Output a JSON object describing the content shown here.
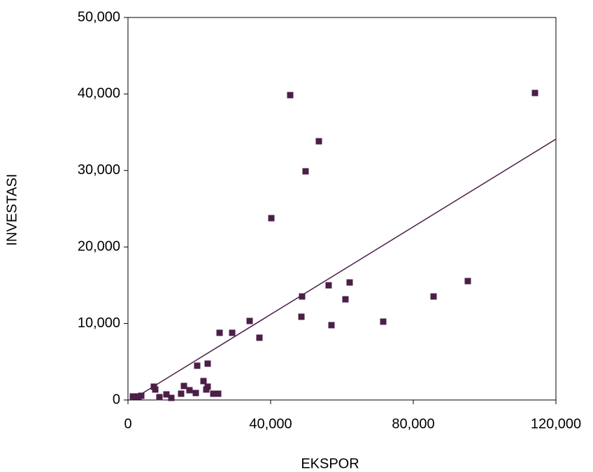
{
  "chart_data": {
    "type": "scatter",
    "x_label": "EKSPOR",
    "y_label": "INVESTASI",
    "color": "#4b1f48",
    "fit_color": "#4b1f48",
    "xlim": [
      0,
      120000
    ],
    "ylim": [
      0,
      50000
    ],
    "xticks": [
      0,
      {
        "value": 40000,
        "label": "40,000"
      },
      {
        "value": 80000,
        "label": "80,000"
      },
      {
        "value": 120000,
        "label": "120,000"
      }
    ],
    "yticks": [
      0,
      {
        "value": 10000,
        "label": "10,000"
      },
      {
        "value": 20000,
        "label": "20,000"
      },
      {
        "value": 30000,
        "label": "30,000"
      },
      {
        "value": 40000,
        "label": "40,000"
      },
      {
        "value": 50000,
        "label": "50,000"
      }
    ],
    "x": [
      45490,
      114120,
      53530,
      49800,
      40200,
      56270,
      62160,
      95290,
      60980,
      85690,
      48820,
      48630,
      57060,
      71570,
      34120,
      29220,
      36860,
      25690,
      22350,
      19410,
      21180,
      22350,
      21960,
      15690,
      17250,
      19020,
      14900,
      23920,
      25290,
      7250,
      7650,
      8820,
      10780,
      12160,
      3730,
      1370,
      2350,
      2940
    ],
    "y": [
      39850,
      40130,
      33820,
      29890,
      23770,
      14990,
      15360,
      15540,
      13160,
      13530,
      13530,
      10880,
      9780,
      10240,
      10330,
      8780,
      8140,
      8780,
      4750,
      4480,
      2470,
      1740,
      1370,
      1830,
      1280,
      910,
      820,
      820,
      820,
      1740,
      1370,
      370,
      730,
      270,
      550,
      460,
      460,
      460
    ],
    "fit": {
      "x": [
        1000,
        120000
      ],
      "y": [
        0,
        34100
      ]
    }
  }
}
